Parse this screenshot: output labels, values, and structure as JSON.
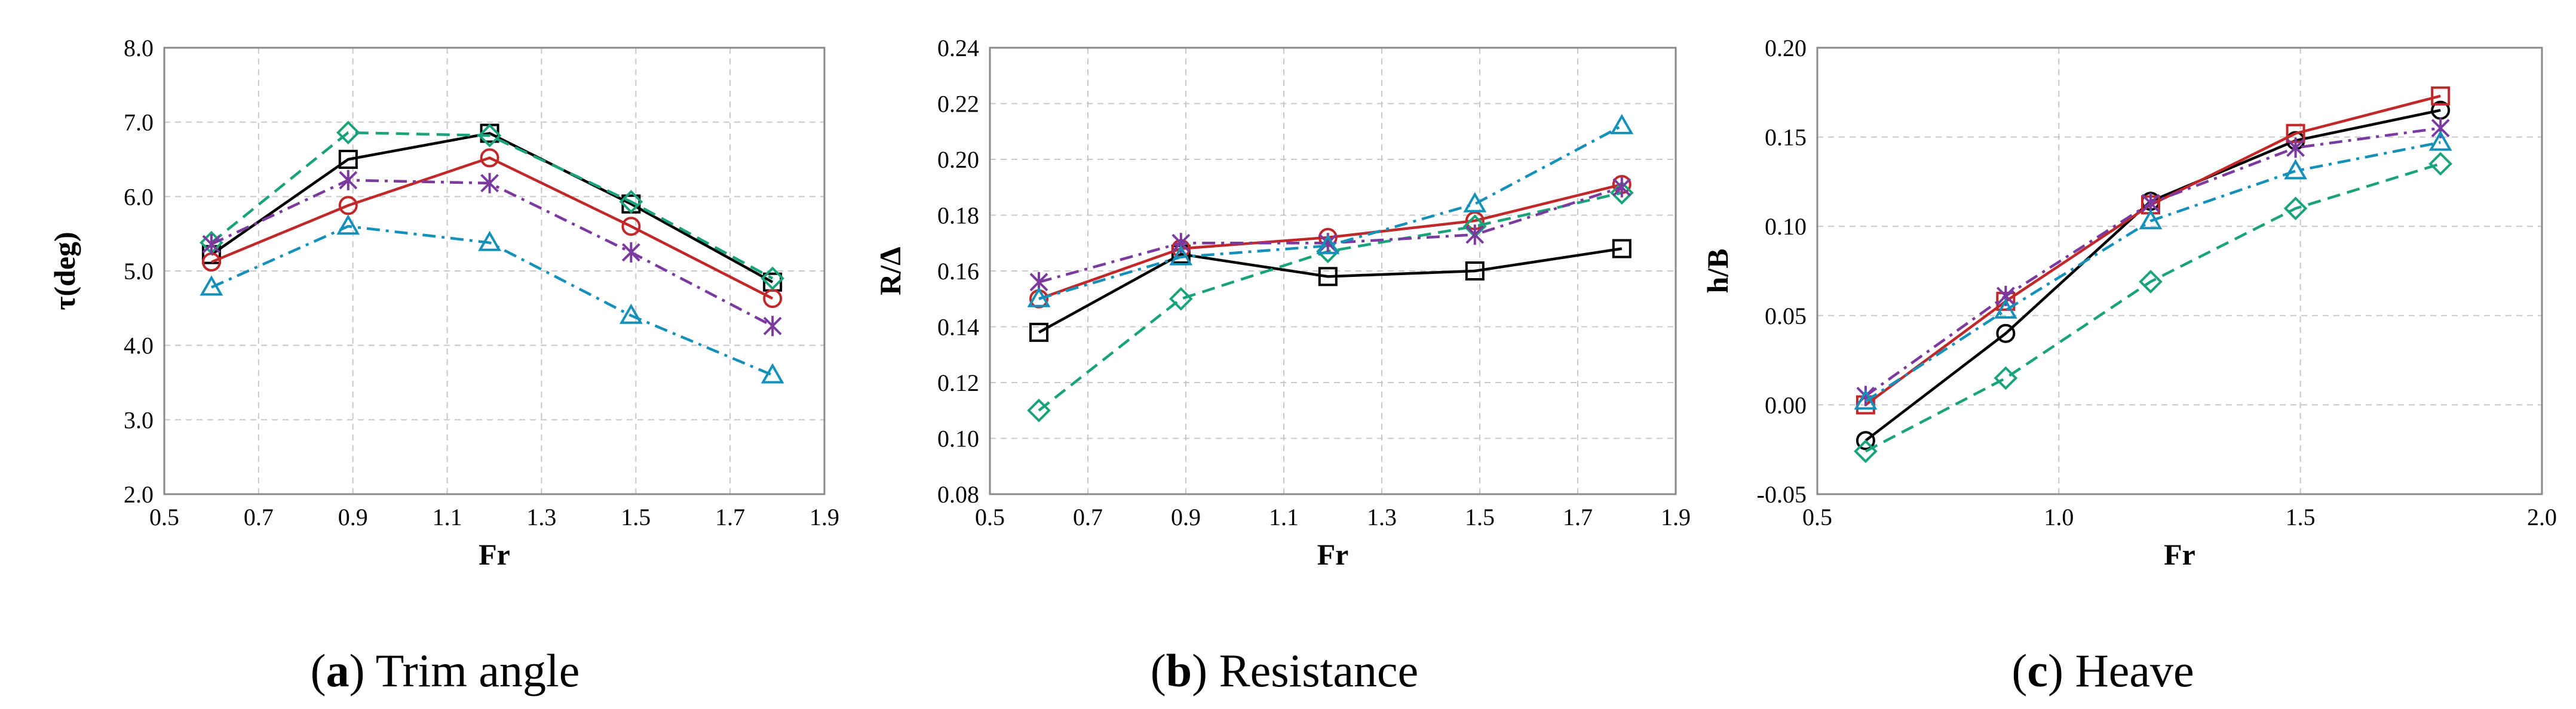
{
  "chart_data": [
    {
      "type": "line",
      "caption_letter": "a",
      "caption_text": "Trim angle",
      "xlabel": "Fr",
      "ylabel": "τ(deg)",
      "xlim": [
        0.5,
        1.9
      ],
      "ylim": [
        2.0,
        8.0
      ],
      "x_ticks": [
        "0.5",
        "0.7",
        "0.9",
        "1.1",
        "1.3",
        "1.5",
        "1.7",
        "1.9"
      ],
      "y_ticks": [
        "2.0",
        "3.0",
        "4.0",
        "5.0",
        "6.0",
        "7.0",
        "8.0"
      ],
      "grid": true,
      "series": [
        {
          "color": "#000000",
          "dash": "solid",
          "marker": "square",
          "x": [
            0.6,
            0.89,
            1.19,
            1.49,
            1.79
          ],
          "values": [
            5.22,
            6.5,
            6.85,
            5.9,
            4.85
          ]
        },
        {
          "color": "#c0282a",
          "dash": "solid",
          "marker": "circle",
          "x": [
            0.6,
            0.89,
            1.19,
            1.49,
            1.79
          ],
          "values": [
            5.12,
            5.88,
            6.52,
            5.6,
            4.63
          ]
        },
        {
          "color": "#1aa37a",
          "dash": "dash",
          "marker": "diamond",
          "x": [
            0.6,
            0.89,
            1.19,
            1.49,
            1.79
          ],
          "values": [
            5.38,
            6.86,
            6.82,
            5.93,
            4.9
          ]
        },
        {
          "color": "#7b3a9e",
          "dash": "dashdot",
          "marker": "star",
          "x": [
            0.6,
            0.89,
            1.19,
            1.49,
            1.79
          ],
          "values": [
            5.36,
            6.22,
            6.18,
            5.25,
            4.26
          ]
        },
        {
          "color": "#1590b8",
          "dash": "dashdot",
          "marker": "triangle",
          "x": [
            0.6,
            0.89,
            1.19,
            1.49,
            1.79
          ],
          "values": [
            4.78,
            5.6,
            5.38,
            4.4,
            3.6
          ]
        }
      ]
    },
    {
      "type": "line",
      "caption_letter": "b",
      "caption_text": "Resistance",
      "xlabel": "Fr",
      "ylabel": "R/Δ",
      "xlim": [
        0.5,
        1.9
      ],
      "ylim": [
        0.08,
        0.24
      ],
      "x_ticks": [
        "0.5",
        "0.7",
        "0.9",
        "1.1",
        "1.3",
        "1.5",
        "1.7",
        "1.9"
      ],
      "y_ticks": [
        "0.08",
        "0.10",
        "0.12",
        "0.14",
        "0.16",
        "0.18",
        "0.20",
        "0.22",
        "0.24"
      ],
      "grid": true,
      "series": [
        {
          "color": "#000000",
          "dash": "solid",
          "marker": "square",
          "x": [
            0.6,
            0.89,
            1.19,
            1.49,
            1.79
          ],
          "values": [
            0.138,
            0.166,
            0.158,
            0.16,
            0.168
          ]
        },
        {
          "color": "#c0282a",
          "dash": "solid",
          "marker": "circle",
          "x": [
            0.6,
            0.89,
            1.19,
            1.49,
            1.79
          ],
          "values": [
            0.15,
            0.168,
            0.172,
            0.178,
            0.191
          ]
        },
        {
          "color": "#1aa37a",
          "dash": "dash",
          "marker": "diamond",
          "x": [
            0.6,
            0.89,
            1.19,
            1.49,
            1.79
          ],
          "values": [
            0.11,
            0.15,
            0.167,
            0.176,
            0.188
          ]
        },
        {
          "color": "#7b3a9e",
          "dash": "dashdot",
          "marker": "star",
          "x": [
            0.6,
            0.89,
            1.19,
            1.49,
            1.79
          ],
          "values": [
            0.156,
            0.17,
            0.17,
            0.173,
            0.19
          ]
        },
        {
          "color": "#1590b8",
          "dash": "dashdot",
          "marker": "triangle",
          "x": [
            0.6,
            0.89,
            1.19,
            1.49,
            1.79
          ],
          "values": [
            0.15,
            0.165,
            0.169,
            0.184,
            0.212
          ]
        }
      ]
    },
    {
      "type": "line",
      "caption_letter": "c",
      "caption_text": "Heave",
      "xlabel": "Fr",
      "ylabel": "h/B",
      "xlim": [
        0.5,
        2.0
      ],
      "ylim": [
        -0.05,
        0.2
      ],
      "x_ticks": [
        "0.5",
        "1.0",
        "1.5",
        "2.0"
      ],
      "y_ticks": [
        "-0.05",
        "0.00",
        "0.05",
        "0.10",
        "0.15",
        "0.20"
      ],
      "grid": true,
      "series": [
        {
          "color": "#000000",
          "dash": "solid",
          "marker": "circle",
          "x": [
            0.6,
            0.89,
            1.19,
            1.49,
            1.79
          ],
          "values": [
            -0.02,
            0.04,
            0.114,
            0.148,
            0.165
          ]
        },
        {
          "color": "#c0282a",
          "dash": "solid",
          "marker": "square",
          "x": [
            0.6,
            0.89,
            1.19,
            1.49,
            1.79
          ],
          "values": [
            0.0,
            0.058,
            0.112,
            0.152,
            0.173
          ]
        },
        {
          "color": "#1aa37a",
          "dash": "dash",
          "marker": "diamond",
          "x": [
            0.6,
            0.89,
            1.19,
            1.49,
            1.79
          ],
          "values": [
            -0.026,
            0.015,
            0.069,
            0.11,
            0.135
          ]
        },
        {
          "color": "#7b3a9e",
          "dash": "dashdot",
          "marker": "star",
          "x": [
            0.6,
            0.89,
            1.19,
            1.49,
            1.79
          ],
          "values": [
            0.005,
            0.061,
            0.113,
            0.144,
            0.155
          ]
        },
        {
          "color": "#1590b8",
          "dash": "dashdot",
          "marker": "triangle",
          "x": [
            0.6,
            0.89,
            1.19,
            1.49,
            1.79
          ],
          "values": [
            0.002,
            0.053,
            0.103,
            0.131,
            0.147
          ]
        }
      ]
    }
  ]
}
